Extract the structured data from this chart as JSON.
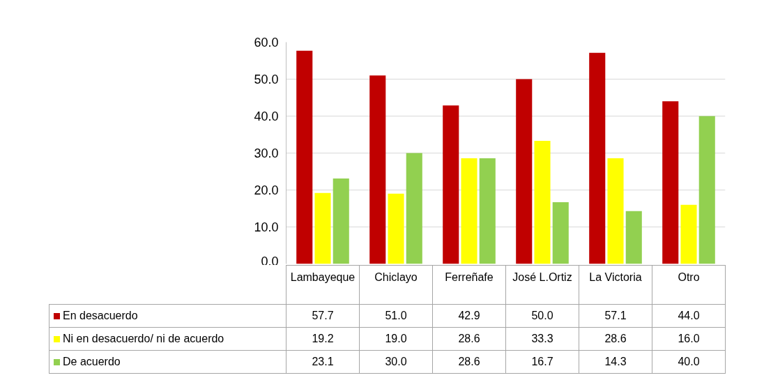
{
  "chart_data": {
    "type": "bar",
    "categories": [
      "Lambayeque",
      "Chiclayo",
      "Ferreñafe",
      "José L.Ortiz",
      "La Victoria",
      "Otro"
    ],
    "series": [
      {
        "name": "En desacuerdo",
        "color": "#c00000",
        "values": [
          57.7,
          51.0,
          42.9,
          50.0,
          57.1,
          44.0
        ],
        "value_labels": [
          "57.7",
          "51.0",
          "42.9",
          "50.0",
          "57.1",
          "44.0"
        ]
      },
      {
        "name": "Ni en desacuerdo/ ni de acuerdo",
        "color": "#ffff00",
        "values": [
          19.2,
          19.0,
          28.6,
          33.3,
          28.6,
          16.0
        ],
        "value_labels": [
          "19.2",
          "19.0",
          "28.6",
          "33.3",
          "28.6",
          "16.0"
        ]
      },
      {
        "name": "De acuerdo",
        "color": "#92d050",
        "values": [
          23.1,
          30.0,
          28.6,
          16.7,
          14.3,
          40.0
        ],
        "value_labels": [
          "23.1",
          "30.0",
          "28.6",
          "16.7",
          "14.3",
          "40.0"
        ]
      }
    ],
    "ylim": [
      0,
      60
    ],
    "yticks": [
      {
        "value": 0,
        "label": "0.0"
      },
      {
        "value": 10,
        "label": "10.0"
      },
      {
        "value": 20,
        "label": "20.0"
      },
      {
        "value": 30,
        "label": "30.0"
      },
      {
        "value": 40,
        "label": "40.0"
      },
      {
        "value": 50,
        "label": "50.0"
      },
      {
        "value": 60,
        "label": "60.0"
      }
    ],
    "grid": "y",
    "legend": "bottom"
  }
}
